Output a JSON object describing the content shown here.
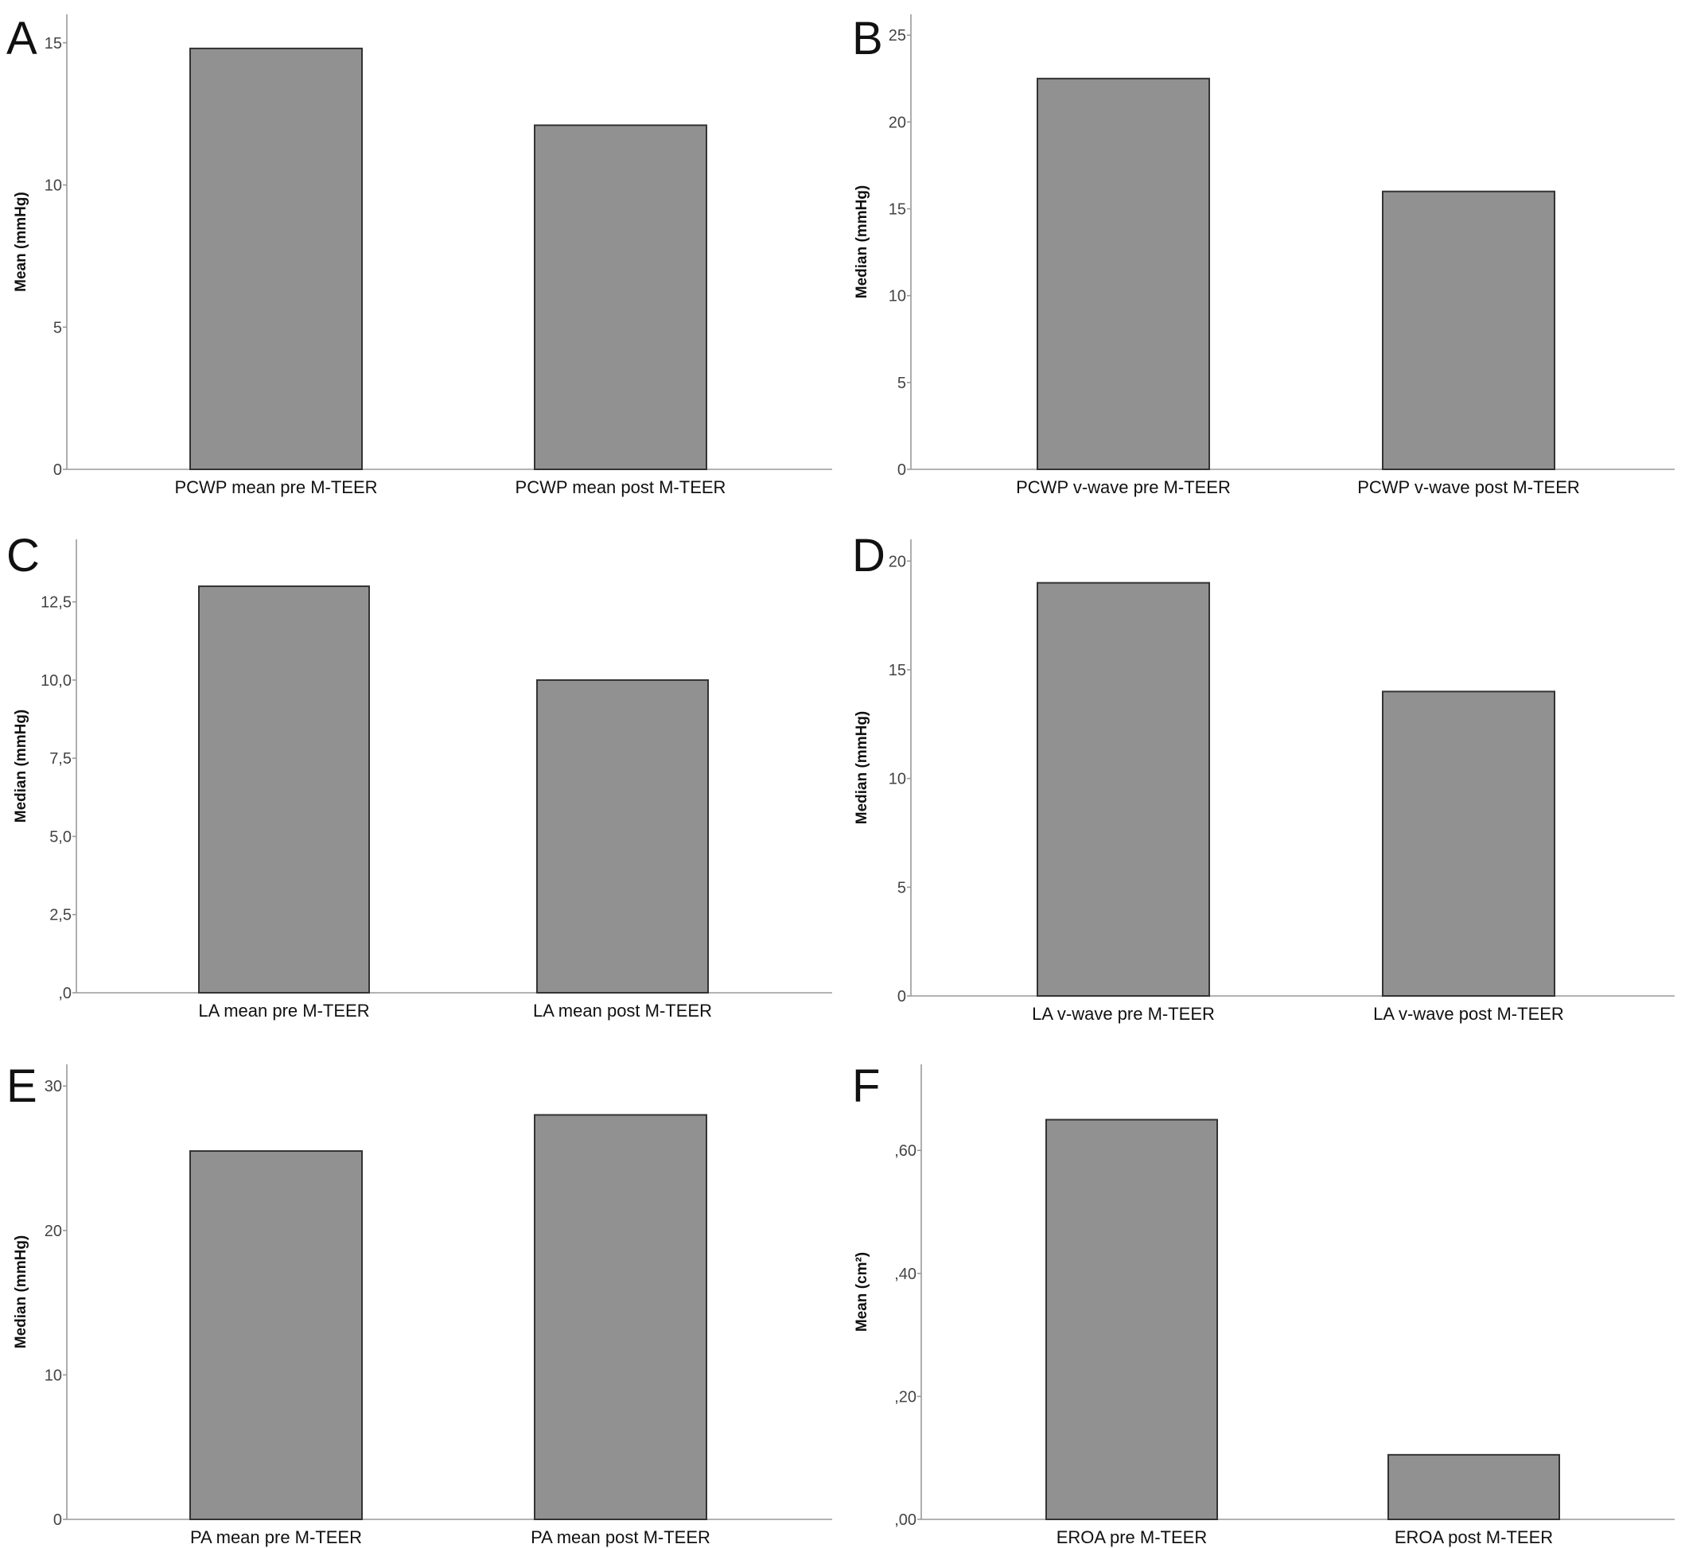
{
  "colors": {
    "bar_fill": "#919191",
    "bar_stroke": "#333333",
    "axis": "#9a9a9a"
  },
  "chart_data": [
    {
      "panel": "A",
      "type": "bar",
      "categories": [
        "PCWP mean pre M-TEER",
        "PCWP mean post M-TEER"
      ],
      "values": [
        14.8,
        12.1
      ],
      "ylabel": "Mean (mmHg)",
      "xlabel": "",
      "ylim": [
        0,
        16
      ],
      "yticks": [
        0,
        5,
        10,
        15
      ],
      "ytick_labels": [
        "0",
        "5",
        "10",
        "15"
      ],
      "grid": false
    },
    {
      "panel": "B",
      "type": "bar",
      "categories": [
        "PCWP v-wave pre M-TEER",
        "PCWP v-wave post M-TEER"
      ],
      "values": [
        22.5,
        16
      ],
      "ylabel": "Median (mmHg)",
      "xlabel": "",
      "ylim": [
        0,
        26.2
      ],
      "yticks": [
        0,
        5,
        10,
        15,
        20,
        25
      ],
      "ytick_labels": [
        "0",
        "5",
        "10",
        "15",
        "20",
        "25"
      ],
      "grid": false
    },
    {
      "panel": "C",
      "type": "bar",
      "categories": [
        "LA mean pre M-TEER",
        "LA mean post M-TEER"
      ],
      "values": [
        13,
        10
      ],
      "ylabel": "Median (mmHg)",
      "xlabel": "",
      "ylim": [
        0,
        14.5
      ],
      "yticks": [
        0,
        2.5,
        5,
        7.5,
        10,
        12.5
      ],
      "ytick_labels": [
        ",0",
        "2,5",
        "5,0",
        "7,5",
        "10,0",
        "12,5"
      ],
      "grid": false
    },
    {
      "panel": "D",
      "type": "bar",
      "categories": [
        "LA v-wave pre M-TEER",
        "LA v-wave post M-TEER"
      ],
      "values": [
        19,
        14
      ],
      "ylabel": "Median (mmHg)",
      "xlabel": "",
      "ylim": [
        0,
        21
      ],
      "yticks": [
        0,
        5,
        10,
        15,
        20
      ],
      "ytick_labels": [
        "0",
        "5",
        "10",
        "15",
        "20"
      ],
      "grid": false
    },
    {
      "panel": "E",
      "type": "bar",
      "categories": [
        "PA mean pre M-TEER",
        "PA mean post M-TEER"
      ],
      "values": [
        25.5,
        28
      ],
      "ylabel": "Median (mmHg)",
      "xlabel": "",
      "ylim": [
        0,
        31.5
      ],
      "yticks": [
        0,
        10,
        20,
        30
      ],
      "ytick_labels": [
        "0",
        "10",
        "20",
        "30"
      ],
      "grid": false
    },
    {
      "panel": "F",
      "type": "bar",
      "categories": [
        "EROA pre M-TEER",
        "EROA post M-TEER"
      ],
      "values": [
        0.65,
        0.105
      ],
      "ylabel": "Mean (cm²)",
      "xlabel": "",
      "ylim": [
        0,
        0.74
      ],
      "yticks": [
        0,
        0.2,
        0.4,
        0.6
      ],
      "ytick_labels": [
        ",00",
        ",20",
        ",40",
        ",60"
      ],
      "grid": false
    }
  ]
}
